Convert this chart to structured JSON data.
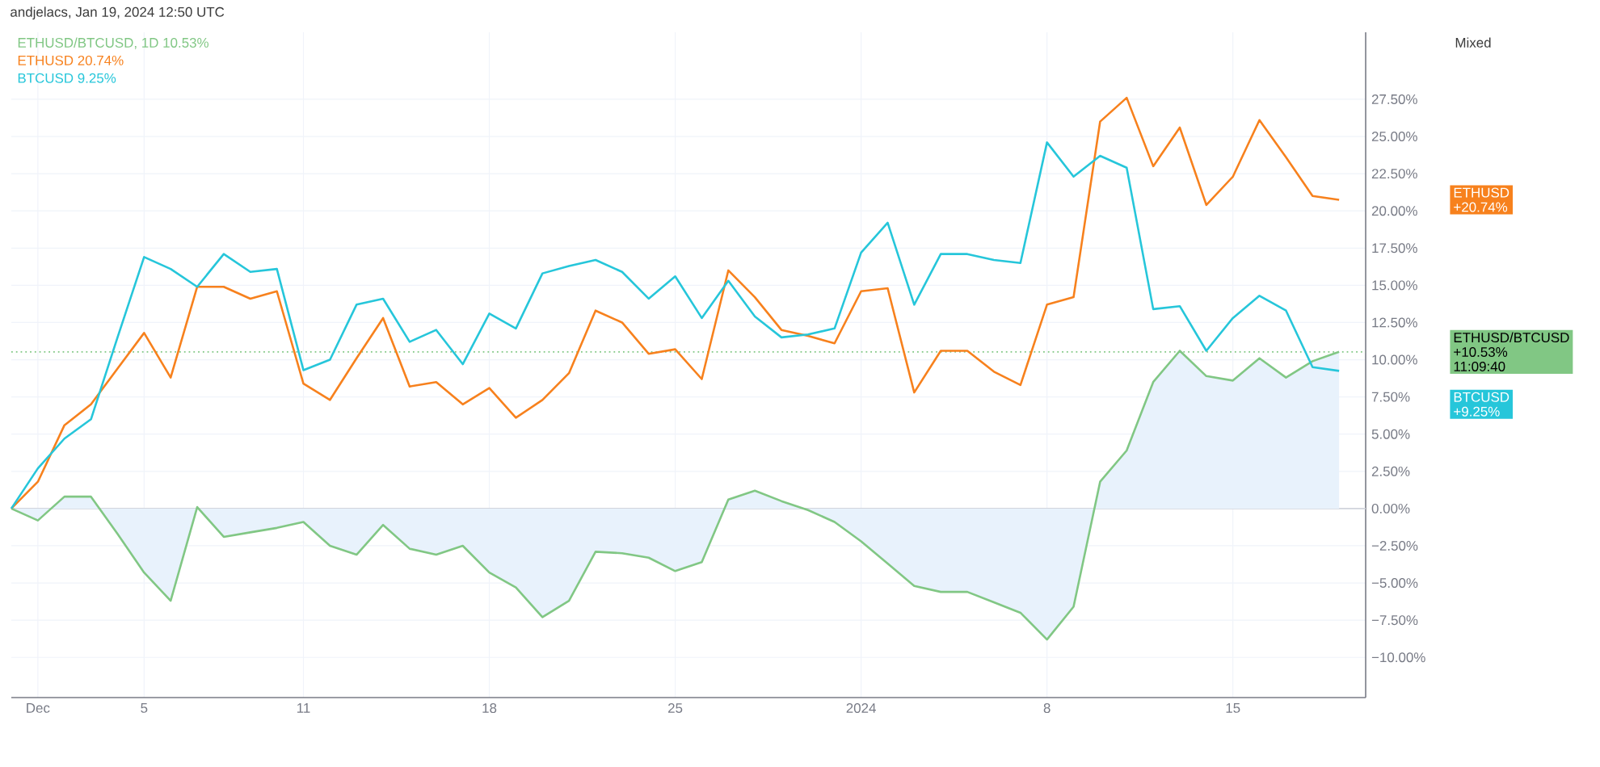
{
  "chart_data": {
    "type": "line",
    "x": [
      "2023-11-30",
      "2023-12-01",
      "2023-12-02",
      "2023-12-03",
      "2023-12-04",
      "2023-12-05",
      "2023-12-06",
      "2023-12-07",
      "2023-12-08",
      "2023-12-09",
      "2023-12-10",
      "2023-12-11",
      "2023-12-12",
      "2023-12-13",
      "2023-12-14",
      "2023-12-15",
      "2023-12-16",
      "2023-12-17",
      "2023-12-18",
      "2023-12-19",
      "2023-12-20",
      "2023-12-21",
      "2023-12-22",
      "2023-12-23",
      "2023-12-24",
      "2023-12-25",
      "2023-12-26",
      "2023-12-27",
      "2023-12-28",
      "2023-12-29",
      "2023-12-30",
      "2023-12-31",
      "2024-01-01",
      "2024-01-02",
      "2024-01-03",
      "2024-01-04",
      "2024-01-05",
      "2024-01-06",
      "2024-01-07",
      "2024-01-08",
      "2024-01-09",
      "2024-01-10",
      "2024-01-11",
      "2024-01-12",
      "2024-01-13",
      "2024-01-14",
      "2024-01-15",
      "2024-01-16",
      "2024-01-17",
      "2024-01-18",
      "2024-01-19"
    ],
    "series": [
      {
        "name": "ETHUSD/BTCUSD, 1D",
        "type": "area",
        "color": "#81c784",
        "values": [
          0,
          -0.8,
          0.8,
          0.8,
          -1.7,
          -4.3,
          -6.2,
          0.1,
          -1.9,
          -1.6,
          -1.3,
          -0.9,
          -2.5,
          -3.1,
          -1.1,
          -2.7,
          -3.1,
          -2.5,
          -4.3,
          -5.3,
          -7.3,
          -6.2,
          -2.9,
          -3.0,
          -3.3,
          -4.2,
          -3.6,
          0.6,
          1.2,
          0.5,
          -0.1,
          -0.9,
          -2.2,
          -3.7,
          -5.2,
          -5.6,
          -5.6,
          -6.3,
          -7.0,
          -8.8,
          -6.6,
          1.8,
          3.9,
          8.5,
          10.6,
          8.9,
          8.6,
          10.1,
          8.8,
          9.9,
          10.53
        ]
      },
      {
        "name": "ETHUSD",
        "color": "#f7811d",
        "values": [
          0,
          1.8,
          5.6,
          7.0,
          9.4,
          11.8,
          8.8,
          14.9,
          14.9,
          14.1,
          14.6,
          8.4,
          7.3,
          10.1,
          12.8,
          8.2,
          8.5,
          7.0,
          8.1,
          6.1,
          7.3,
          9.1,
          13.3,
          12.5,
          10.4,
          10.7,
          8.7,
          16.0,
          14.2,
          12.0,
          11.6,
          11.1,
          14.6,
          14.8,
          7.8,
          10.6,
          10.6,
          9.2,
          8.3,
          13.7,
          14.2,
          26.0,
          27.6,
          23.0,
          25.6,
          20.4,
          22.3,
          26.1,
          23.6,
          21.0,
          20.74
        ]
      },
      {
        "name": "BTCUSD",
        "color": "#26c6da",
        "values": [
          0,
          2.7,
          4.7,
          6.0,
          11.5,
          16.9,
          16.1,
          14.9,
          17.1,
          15.9,
          16.1,
          9.3,
          10.0,
          13.7,
          14.1,
          11.2,
          12.0,
          9.7,
          13.1,
          12.1,
          15.8,
          16.3,
          16.7,
          15.9,
          14.1,
          15.6,
          12.8,
          15.3,
          12.9,
          11.5,
          11.7,
          12.1,
          17.2,
          19.2,
          13.7,
          17.1,
          17.1,
          16.7,
          16.5,
          24.6,
          22.3,
          23.7,
          22.9,
          13.4,
          13.6,
          10.6,
          12.8,
          14.3,
          13.3,
          9.5,
          9.25
        ]
      }
    ],
    "xlim": [
      "2023-11-30",
      "2024-01-20"
    ],
    "xticks": [
      {
        "value": "2023-12-01",
        "label": "Dec"
      },
      {
        "value": "2023-12-05",
        "label": "5"
      },
      {
        "value": "2023-12-11",
        "label": "11"
      },
      {
        "value": "2023-12-18",
        "label": "18"
      },
      {
        "value": "2023-12-25",
        "label": "25"
      },
      {
        "value": "2024-01-01",
        "label": "2024"
      },
      {
        "value": "2024-01-08",
        "label": "8"
      },
      {
        "value": "2024-01-15",
        "label": "15"
      }
    ],
    "ylim": [
      -12.7,
      32
    ],
    "yticks": [
      {
        "value": -10,
        "label": "−10.00%"
      },
      {
        "value": -7.5,
        "label": "−7.50%"
      },
      {
        "value": -5,
        "label": "−5.00%"
      },
      {
        "value": -2.5,
        "label": "−2.50%"
      },
      {
        "value": 0,
        "label": "0.00%"
      },
      {
        "value": 2.5,
        "label": "2.50%"
      },
      {
        "value": 5,
        "label": "5.00%"
      },
      {
        "value": 7.5,
        "label": "7.50%"
      },
      {
        "value": 10,
        "label": "10.00%"
      },
      {
        "value": 12.5,
        "label": "12.50%"
      },
      {
        "value": 15,
        "label": "15.00%"
      },
      {
        "value": 17.5,
        "label": "17.50%"
      },
      {
        "value": 20,
        "label": "20.00%"
      },
      {
        "value": 22.5,
        "label": "22.50%"
      },
      {
        "value": 25,
        "label": "25.00%"
      },
      {
        "value": 27.5,
        "label": "27.50%"
      }
    ],
    "ref_lines": [
      {
        "axis": "y",
        "value": 0,
        "color": "#d1d4dc",
        "line_style": "solid"
      },
      {
        "axis": "y",
        "value": 10.53,
        "color": "#81c784",
        "line_style": "dotted"
      }
    ],
    "grid": true,
    "legend": "top left",
    "annotations": [
      "andjelacs, Jan 19, 2024 12:50 UTC",
      "Mixed",
      "10.53%",
      "20.74%",
      "9.25%",
      "ETHUSD/BTCUSD",
      "+10.53%",
      "ETHUSD",
      "+20.74%",
      "BTCUSD",
      "+9.25%",
      "11:09:40"
    ]
  }
}
